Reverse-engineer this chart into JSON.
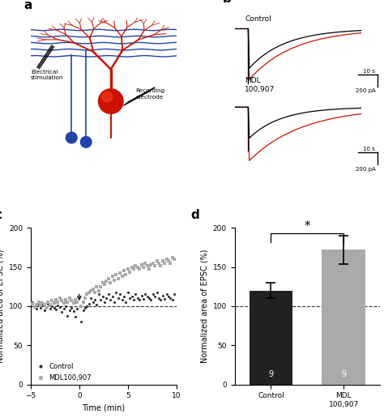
{
  "panel_c": {
    "control_x": [
      -4.8,
      -4.6,
      -4.4,
      -4.2,
      -4.0,
      -3.8,
      -3.6,
      -3.4,
      -3.2,
      -3.0,
      -2.8,
      -2.6,
      -2.4,
      -2.2,
      -2.0,
      -1.8,
      -1.6,
      -1.4,
      -1.2,
      -1.0,
      -0.8,
      -0.6,
      -0.4,
      -0.2,
      0.2,
      0.4,
      0.6,
      0.8,
      1.0,
      1.2,
      1.4,
      1.6,
      1.8,
      2.0,
      2.2,
      2.4,
      2.6,
      2.8,
      3.0,
      3.2,
      3.4,
      3.6,
      3.8,
      4.0,
      4.2,
      4.4,
      4.6,
      4.8,
      5.0,
      5.2,
      5.4,
      5.6,
      5.8,
      6.0,
      6.2,
      6.4,
      6.6,
      6.8,
      7.0,
      7.2,
      7.4,
      7.6,
      7.8,
      8.0,
      8.2,
      8.4,
      8.6,
      8.8,
      9.0,
      9.2,
      9.4,
      9.6,
      9.8
    ],
    "control_y": [
      105,
      100,
      97,
      102,
      98,
      101,
      95,
      99,
      103,
      97,
      100,
      98,
      96,
      101,
      99,
      93,
      97,
      100,
      88,
      95,
      98,
      94,
      87,
      97,
      80,
      95,
      98,
      100,
      103,
      110,
      105,
      108,
      102,
      115,
      108,
      112,
      105,
      110,
      115,
      108,
      112,
      105,
      118,
      110,
      115,
      108,
      112,
      105,
      118,
      110,
      112,
      108,
      115,
      110,
      108,
      113,
      109,
      115,
      112,
      110,
      108,
      115,
      112,
      118,
      110,
      108,
      113,
      109,
      115,
      112,
      110,
      108,
      115
    ],
    "mdl_x": [
      -4.8,
      -4.6,
      -4.4,
      -4.2,
      -4.0,
      -3.8,
      -3.6,
      -3.4,
      -3.2,
      -3.0,
      -2.8,
      -2.6,
      -2.4,
      -2.2,
      -2.0,
      -1.8,
      -1.6,
      -1.4,
      -1.2,
      -1.0,
      -0.8,
      -0.6,
      -0.4,
      -0.2,
      0.2,
      0.4,
      0.6,
      0.8,
      1.0,
      1.2,
      1.4,
      1.6,
      1.8,
      2.0,
      2.2,
      2.4,
      2.6,
      2.8,
      3.0,
      3.2,
      3.4,
      3.6,
      3.8,
      4.0,
      4.2,
      4.4,
      4.6,
      4.8,
      5.0,
      5.2,
      5.4,
      5.6,
      5.8,
      6.0,
      6.2,
      6.4,
      6.6,
      6.8,
      7.0,
      7.2,
      7.4,
      7.6,
      7.8,
      8.0,
      8.2,
      8.4,
      8.6,
      8.8,
      9.0,
      9.2,
      9.4,
      9.6,
      9.8
    ],
    "mdl_y": [
      103,
      99,
      102,
      105,
      101,
      104,
      102,
      98,
      105,
      102,
      107,
      104,
      108,
      105,
      110,
      107,
      104,
      108,
      105,
      110,
      107,
      104,
      108,
      105,
      100,
      105,
      110,
      115,
      118,
      120,
      122,
      118,
      125,
      120,
      125,
      130,
      128,
      132,
      135,
      130,
      138,
      133,
      140,
      135,
      142,
      138,
      145,
      140,
      148,
      143,
      150,
      148,
      152,
      150,
      148,
      153,
      150,
      155,
      152,
      148,
      153,
      155,
      152,
      158,
      155,
      152,
      158,
      155,
      160,
      158,
      155,
      162,
      160
    ],
    "xlabel": "Time (min)",
    "ylabel": "Normalized area of EPSC (%)",
    "xlim": [
      -5,
      10
    ],
    "ylim": [
      0,
      200
    ],
    "yticks": [
      0,
      50,
      100,
      150,
      200
    ],
    "xticks": [
      -5,
      0,
      5,
      10
    ],
    "control_color": "#333333",
    "mdl_color": "#aaaaaa",
    "dashed_y": 100,
    "legend_control": "Control",
    "legend_mdl": "MDL100,907"
  },
  "panel_d": {
    "categories": [
      "Control",
      "MDL\n100,907"
    ],
    "values": [
      120,
      172
    ],
    "errors": [
      10,
      18
    ],
    "bar_colors": [
      "#222222",
      "#aaaaaa"
    ],
    "ylabel": "Normalized area of EPSC (%)",
    "ylim": [
      0,
      200
    ],
    "yticks": [
      0,
      50,
      100,
      150,
      200
    ],
    "dashed_y": 100,
    "n_labels": [
      "9",
      "9"
    ],
    "star_text": "*"
  },
  "neuron": {
    "fiber_color": "#2244aa",
    "purkinje_color": "#cc1100",
    "granule_color": "#2244aa",
    "electrode_color": "#000000"
  },
  "traces": {
    "control_label": "Control",
    "mdl_label": "MDL\n100,907",
    "baseline_color": "#000000",
    "drug_color": "#cc1100",
    "scale_bar_text_y": "200 pA",
    "scale_bar_text_x": "10 s"
  }
}
